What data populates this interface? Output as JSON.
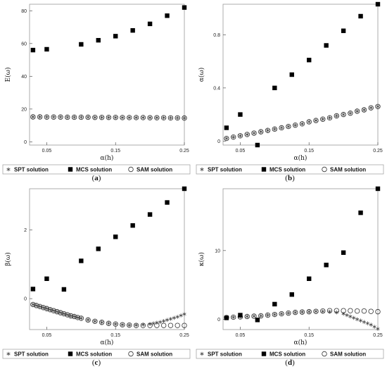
{
  "legend": {
    "spt": "SPT solution",
    "mcs": "MCS solution",
    "sam": "SAM solution"
  },
  "chart_data": [
    {
      "type": "scatter",
      "panel": "a",
      "caption": "a",
      "xlabel": "α(h)",
      "ylabel": "E(ω)",
      "xlim": [
        0.025,
        0.25
      ],
      "ylim": [
        -2,
        84
      ],
      "xticks": [
        0.05,
        0.15,
        0.25
      ],
      "xtick_labels": [
        "0.05",
        "0.15",
        "0.25"
      ],
      "yticks": [
        0,
        20,
        40,
        60,
        80
      ],
      "ytick_labels": [
        "0",
        "20",
        "40",
        "60",
        "80"
      ],
      "series": [
        {
          "name": "MCS solution",
          "marker": "square",
          "x": [
            0.03,
            0.05,
            0.1,
            0.125,
            0.15,
            0.175,
            0.2,
            0.225,
            0.25
          ],
          "y": [
            56,
            56.5,
            59.5,
            62,
            64.5,
            68,
            72,
            77,
            82
          ]
        },
        {
          "name": "SAM solution",
          "marker": "circle",
          "x": [
            0.03,
            0.04,
            0.05,
            0.06,
            0.07,
            0.08,
            0.09,
            0.1,
            0.11,
            0.12,
            0.13,
            0.14,
            0.15,
            0.16,
            0.17,
            0.18,
            0.19,
            0.2,
            0.21,
            0.22,
            0.23,
            0.24,
            0.25
          ],
          "y": [
            15.2,
            15.2,
            15.1,
            15.1,
            15.1,
            15.0,
            15.0,
            15.0,
            15.0,
            14.9,
            14.9,
            14.9,
            14.9,
            14.8,
            14.8,
            14.8,
            14.8,
            14.7,
            14.7,
            14.7,
            14.6,
            14.6,
            14.5
          ]
        },
        {
          "name": "SPT solution",
          "marker": "star",
          "x": [
            0.03,
            0.04,
            0.05,
            0.06,
            0.07,
            0.08,
            0.09,
            0.1,
            0.11,
            0.12,
            0.13,
            0.14,
            0.15,
            0.16,
            0.17,
            0.18,
            0.19,
            0.2,
            0.21,
            0.22,
            0.23,
            0.24,
            0.25
          ],
          "y": [
            15.2,
            15.2,
            15.1,
            15.1,
            15.1,
            15.0,
            15.0,
            15.0,
            15.0,
            14.9,
            14.9,
            14.9,
            14.9,
            14.8,
            14.8,
            14.8,
            14.8,
            14.7,
            14.7,
            14.7,
            14.6,
            14.6,
            14.5
          ]
        }
      ]
    },
    {
      "type": "scatter",
      "panel": "b",
      "caption": "b",
      "xlabel": "α(h)",
      "ylabel": "α(ω)",
      "xlim": [
        0.025,
        0.25
      ],
      "ylim": [
        -0.03,
        1.03
      ],
      "xticks": [
        0.05,
        0.15,
        0.25
      ],
      "xtick_labels": [
        "0.05",
        "0.15",
        "0.25"
      ],
      "yticks": [
        0,
        0.4,
        0.8
      ],
      "ytick_labels": [
        "0",
        "0.4",
        "0.8"
      ],
      "series": [
        {
          "name": "MCS solution",
          "marker": "square",
          "x": [
            0.03,
            0.05,
            0.075,
            0.1,
            0.125,
            0.15,
            0.175,
            0.2,
            0.225,
            0.25
          ],
          "y": [
            0.1,
            0.2,
            -0.03,
            0.4,
            0.5,
            0.61,
            0.72,
            0.83,
            0.94,
            1.03
          ]
        },
        {
          "name": "SAM solution",
          "marker": "circle",
          "x": [
            0.03,
            0.04,
            0.05,
            0.06,
            0.07,
            0.08,
            0.09,
            0.1,
            0.11,
            0.12,
            0.13,
            0.14,
            0.15,
            0.16,
            0.17,
            0.18,
            0.19,
            0.2,
            0.21,
            0.22,
            0.23,
            0.24,
            0.25
          ],
          "y": [
            0.02,
            0.03,
            0.04,
            0.05,
            0.06,
            0.07,
            0.08,
            0.09,
            0.1,
            0.11,
            0.12,
            0.13,
            0.145,
            0.155,
            0.165,
            0.175,
            0.19,
            0.2,
            0.21,
            0.225,
            0.235,
            0.25,
            0.26
          ]
        },
        {
          "name": "SPT solution",
          "marker": "star",
          "x": [
            0.03,
            0.04,
            0.05,
            0.06,
            0.07,
            0.08,
            0.09,
            0.1,
            0.11,
            0.12,
            0.13,
            0.14,
            0.15,
            0.16,
            0.17,
            0.18,
            0.19,
            0.2,
            0.21,
            0.22,
            0.23,
            0.24,
            0.25
          ],
          "y": [
            0.02,
            0.03,
            0.04,
            0.05,
            0.06,
            0.07,
            0.08,
            0.09,
            0.1,
            0.11,
            0.12,
            0.13,
            0.145,
            0.155,
            0.165,
            0.175,
            0.19,
            0.2,
            0.21,
            0.225,
            0.235,
            0.25,
            0.26
          ]
        }
      ]
    },
    {
      "type": "scatter",
      "panel": "c",
      "caption": "c",
      "xlabel": "α(h)",
      "ylabel": "β(ω)",
      "xlim": [
        0.025,
        0.25
      ],
      "ylim": [
        -0.9,
        3.2
      ],
      "xticks": [
        0.05,
        0.15,
        0.25
      ],
      "xtick_labels": [
        "0.05",
        "0.15",
        "0.25"
      ],
      "yticks": [
        0,
        2
      ],
      "ytick_labels": [
        "0",
        "2"
      ],
      "series": [
        {
          "name": "MCS solution",
          "marker": "square",
          "x": [
            0.03,
            0.05,
            0.075,
            0.1,
            0.125,
            0.15,
            0.175,
            0.2,
            0.225,
            0.25
          ],
          "y": [
            0.28,
            0.58,
            0.27,
            1.1,
            1.45,
            1.8,
            2.13,
            2.45,
            2.8,
            3.2
          ]
        },
        {
          "name": "SAM solution",
          "marker": "circle",
          "x": [
            0.03,
            0.035,
            0.04,
            0.045,
            0.05,
            0.055,
            0.06,
            0.065,
            0.07,
            0.075,
            0.08,
            0.085,
            0.09,
            0.095,
            0.1,
            0.11,
            0.12,
            0.13,
            0.14,
            0.15,
            0.16,
            0.17,
            0.18,
            0.19,
            0.2,
            0.21,
            0.22,
            0.23,
            0.24,
            0.25
          ],
          "y": [
            -0.17,
            -0.2,
            -0.23,
            -0.26,
            -0.29,
            -0.32,
            -0.35,
            -0.38,
            -0.41,
            -0.44,
            -0.47,
            -0.5,
            -0.52,
            -0.55,
            -0.57,
            -0.62,
            -0.66,
            -0.69,
            -0.72,
            -0.74,
            -0.76,
            -0.77,
            -0.78,
            -0.78,
            -0.78,
            -0.78,
            -0.78,
            -0.78,
            -0.78,
            -0.78
          ]
        },
        {
          "name": "SPT solution",
          "marker": "star",
          "x": [
            0.03,
            0.035,
            0.04,
            0.045,
            0.05,
            0.055,
            0.06,
            0.065,
            0.07,
            0.075,
            0.08,
            0.085,
            0.09,
            0.095,
            0.1,
            0.11,
            0.12,
            0.13,
            0.14,
            0.15,
            0.16,
            0.17,
            0.18,
            0.19,
            0.2,
            0.205,
            0.21,
            0.215,
            0.22,
            0.225,
            0.23,
            0.235,
            0.24,
            0.245,
            0.25
          ],
          "y": [
            -0.17,
            -0.2,
            -0.23,
            -0.26,
            -0.29,
            -0.32,
            -0.35,
            -0.38,
            -0.41,
            -0.44,
            -0.47,
            -0.5,
            -0.52,
            -0.55,
            -0.57,
            -0.62,
            -0.66,
            -0.69,
            -0.72,
            -0.74,
            -0.76,
            -0.77,
            -0.77,
            -0.76,
            -0.74,
            -0.72,
            -0.7,
            -0.68,
            -0.65,
            -0.62,
            -0.59,
            -0.56,
            -0.53,
            -0.49,
            -0.45
          ]
        }
      ]
    },
    {
      "type": "scatter",
      "panel": "d",
      "caption": "d",
      "xlabel": "α(h)",
      "ylabel": "κ(ω)",
      "xlim": [
        0.025,
        0.25
      ],
      "ylim": [
        -1.5,
        19
      ],
      "xticks": [
        0.05,
        0.15,
        0.25
      ],
      "xtick_labels": [
        "0.05",
        "0.15",
        "0.25"
      ],
      "yticks": [
        0,
        10
      ],
      "ytick_labels": [
        "0",
        "10"
      ],
      "series": [
        {
          "name": "MCS solution",
          "marker": "square",
          "x": [
            0.03,
            0.05,
            0.075,
            0.1,
            0.125,
            0.15,
            0.175,
            0.2,
            0.225,
            0.25
          ],
          "y": [
            0.2,
            0.6,
            -0.1,
            2.2,
            3.6,
            5.9,
            7.9,
            9.7,
            15.5,
            19.0
          ]
        },
        {
          "name": "SAM solution",
          "marker": "circle",
          "x": [
            0.03,
            0.04,
            0.05,
            0.06,
            0.07,
            0.08,
            0.09,
            0.1,
            0.11,
            0.12,
            0.13,
            0.14,
            0.15,
            0.16,
            0.17,
            0.18,
            0.19,
            0.2,
            0.21,
            0.22,
            0.23,
            0.24,
            0.25
          ],
          "y": [
            0.25,
            0.3,
            0.35,
            0.4,
            0.45,
            0.5,
            0.6,
            0.7,
            0.8,
            0.9,
            1.0,
            1.05,
            1.1,
            1.15,
            1.2,
            1.25,
            1.25,
            1.25,
            1.25,
            1.2,
            1.2,
            1.15,
            1.1
          ]
        },
        {
          "name": "SPT solution",
          "marker": "star",
          "x": [
            0.03,
            0.04,
            0.05,
            0.06,
            0.07,
            0.08,
            0.09,
            0.1,
            0.11,
            0.12,
            0.13,
            0.14,
            0.15,
            0.16,
            0.17,
            0.18,
            0.19,
            0.2,
            0.205,
            0.21,
            0.215,
            0.22,
            0.225,
            0.23,
            0.235,
            0.24,
            0.245,
            0.25
          ],
          "y": [
            0.25,
            0.3,
            0.35,
            0.4,
            0.45,
            0.5,
            0.6,
            0.7,
            0.8,
            0.9,
            1.0,
            1.05,
            1.1,
            1.15,
            1.15,
            1.1,
            1.0,
            0.8,
            0.6,
            0.4,
            0.2,
            0.0,
            -0.2,
            -0.4,
            -0.6,
            -0.8,
            -1.1,
            -1.4
          ]
        }
      ]
    }
  ]
}
